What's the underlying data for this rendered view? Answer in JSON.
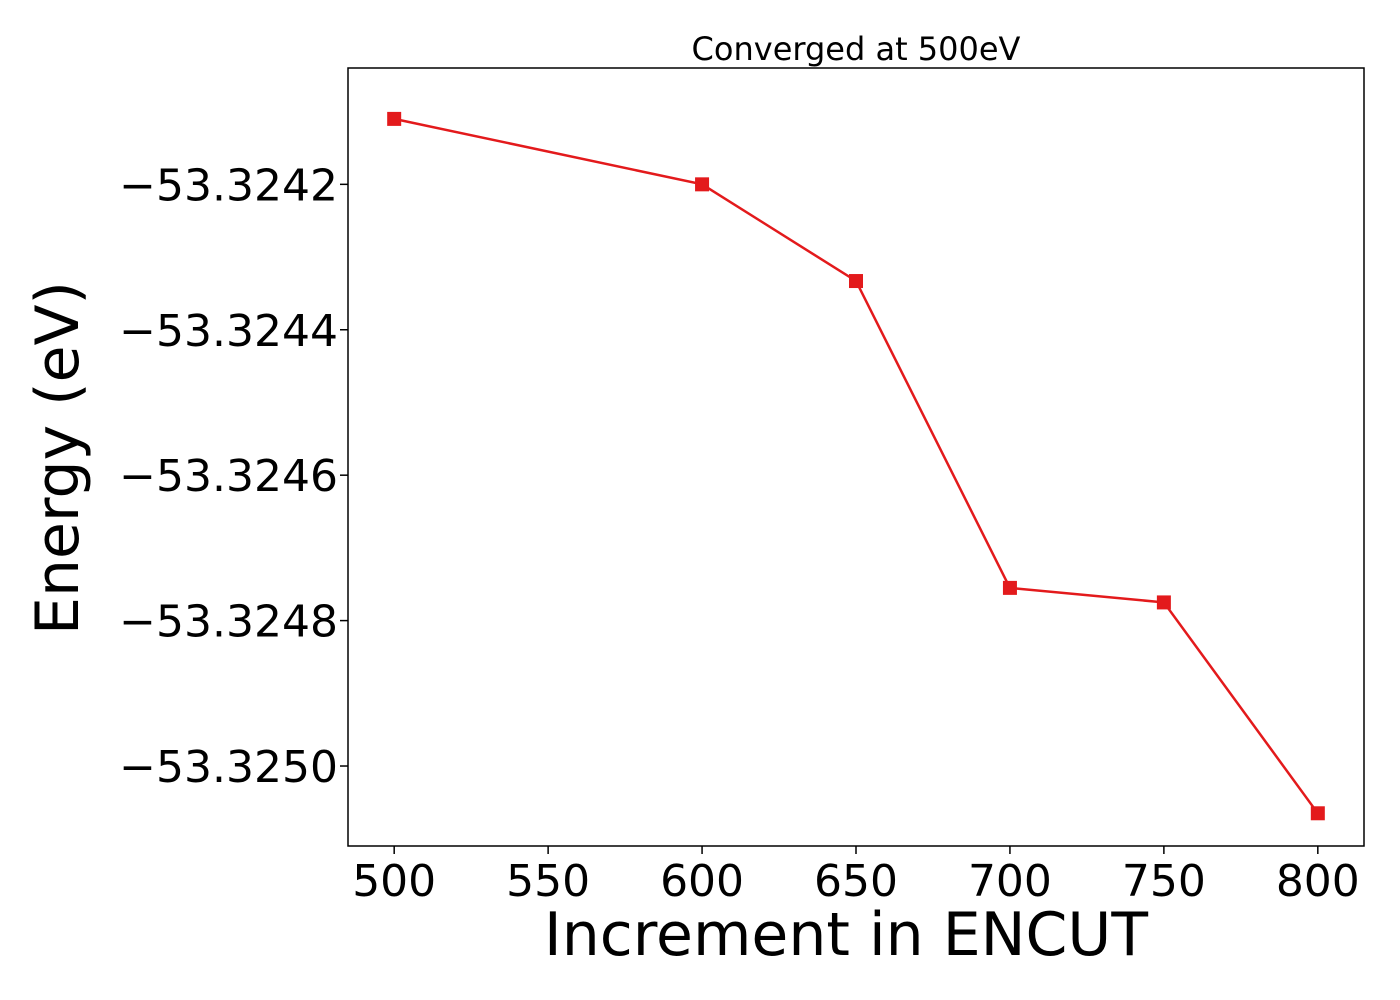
{
  "chart_data": {
    "type": "line",
    "title": "Converged at 500eV",
    "xlabel": "Increment in ENCUT",
    "ylabel": "Energy (eV)",
    "xlim": [
      485,
      815
    ],
    "ylim": [
      -53.32511,
      -53.32404
    ],
    "x_ticks": [
      500,
      550,
      600,
      650,
      700,
      750,
      800
    ],
    "x_tick_labels": [
      "500",
      "550",
      "600",
      "650",
      "700",
      "750",
      "800"
    ],
    "y_ticks": [
      -53.3242,
      -53.3244,
      -53.3246,
      -53.3248,
      -53.325
    ],
    "y_tick_labels": [
      "−53.3242",
      "−53.3244",
      "−53.3246",
      "−53.3248",
      "−53.3250"
    ],
    "grid": false,
    "series": [
      {
        "x": [
          500,
          600,
          650,
          700,
          750,
          800
        ],
        "values": [
          -53.32411,
          -53.3242,
          -53.324333,
          -53.324755,
          -53.324775,
          -53.325065
        ],
        "color": "#e31a1c",
        "marker": "square"
      }
    ]
  }
}
